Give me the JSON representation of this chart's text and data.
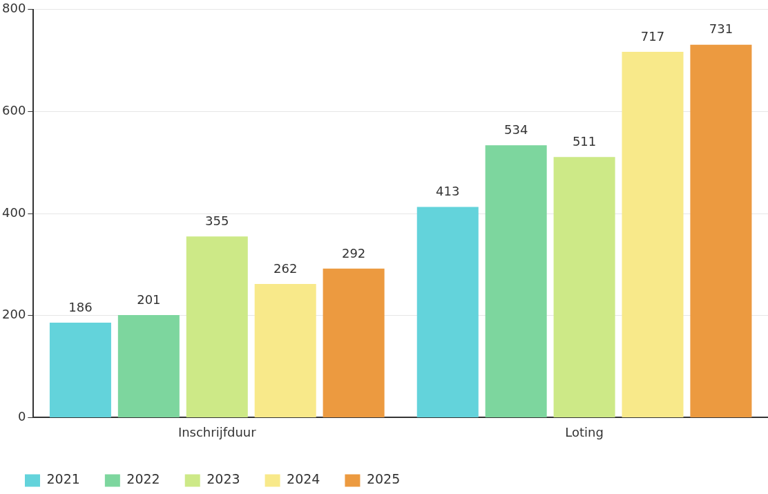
{
  "chart_data": {
    "type": "bar",
    "categories": [
      "Inschrijfduur",
      "Loting"
    ],
    "series": [
      {
        "name": "2021",
        "color": "#63d3db",
        "values": [
          186,
          413
        ]
      },
      {
        "name": "2022",
        "color": "#7dd69e",
        "values": [
          201,
          534
        ]
      },
      {
        "name": "2023",
        "color": "#cde987",
        "values": [
          355,
          511
        ]
      },
      {
        "name": "2024",
        "color": "#f8e98a",
        "values": [
          262,
          717
        ]
      },
      {
        "name": "2025",
        "color": "#ec9a40",
        "values": [
          292,
          731
        ]
      }
    ],
    "ylim": [
      0,
      800
    ],
    "yticks": [
      0,
      200,
      400,
      600,
      800
    ],
    "grid": "y",
    "legend": "bottom left",
    "data_labels": true
  }
}
